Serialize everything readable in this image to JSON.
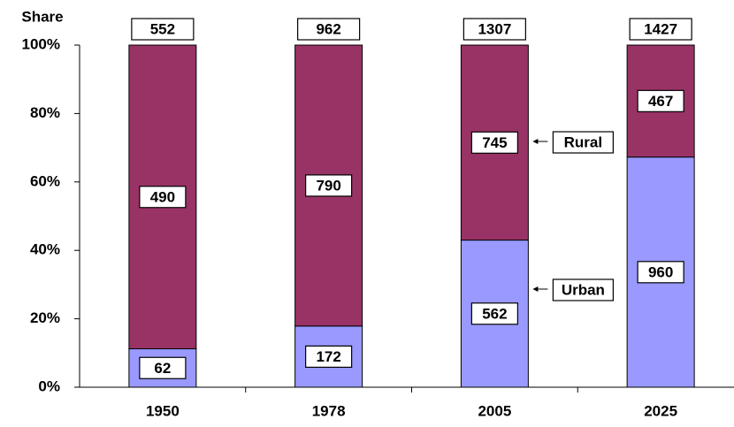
{
  "chart_data": {
    "type": "bar",
    "stacking": "percent",
    "y_label": "Share",
    "categories": [
      "1950",
      "1978",
      "2005",
      "2025"
    ],
    "series": [
      {
        "name": "Urban",
        "color": "#9999ff",
        "values": [
          62,
          172,
          562,
          960
        ]
      },
      {
        "name": "Rural",
        "color": "#993366",
        "values": [
          490,
          790,
          745,
          467
        ]
      }
    ],
    "totals": [
      552,
      962,
      1307,
      1427
    ],
    "ylim": [
      0,
      100
    ],
    "yticks": [
      {
        "value": 0,
        "label": "0%"
      },
      {
        "value": 20,
        "label": "20%"
      },
      {
        "value": 40,
        "label": "40%"
      },
      {
        "value": 60,
        "label": "60%"
      },
      {
        "value": 80,
        "label": "80%"
      },
      {
        "value": 100,
        "label": "100%"
      }
    ],
    "grid": false
  }
}
